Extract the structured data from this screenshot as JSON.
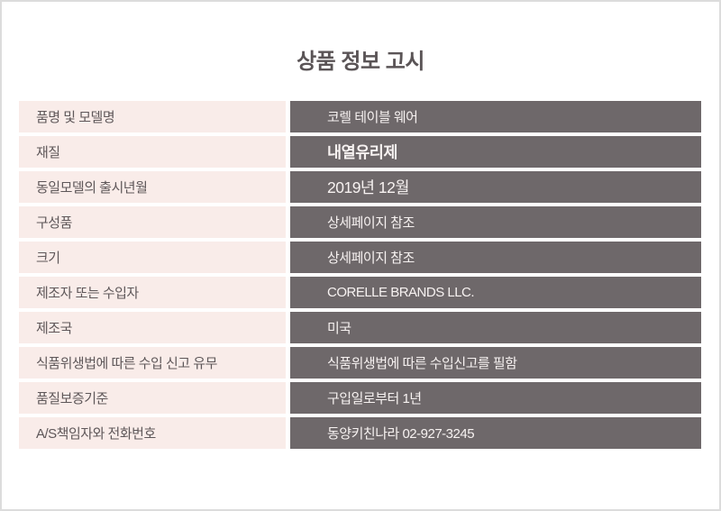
{
  "page": {
    "title": "상품 정보 고시"
  },
  "colors": {
    "label_bg": "#f9ece9",
    "value_bg": "#6e686a",
    "title_text": "#5a5456",
    "label_text": "#5e5759",
    "value_text": "#f7f2f1",
    "page_border": "#dcdcdc"
  },
  "table": {
    "rows": [
      {
        "label": "품명 및 모델명",
        "value": "코렐 테이블 웨어",
        "value_bold": false,
        "value_large": false
      },
      {
        "label": "재질",
        "value": "내열유리제",
        "value_bold": true,
        "value_large": true
      },
      {
        "label": "동일모델의 출시년월",
        "value": "2019년 12월",
        "value_bold": false,
        "value_large": true
      },
      {
        "label": "구성품",
        "value": "상세페이지 참조",
        "value_bold": false,
        "value_large": false
      },
      {
        "label": "크기",
        "value": "상세페이지 참조",
        "value_bold": false,
        "value_large": false
      },
      {
        "label": "제조자 또는 수입자",
        "value": "CORELLE BRANDS LLC.",
        "value_bold": false,
        "value_large": false
      },
      {
        "label": "제조국",
        "value": "미국",
        "value_bold": false,
        "value_large": false
      },
      {
        "label": "식품위생법에 따른 수입 신고 유무",
        "value": "식품위생법에 따른 수입신고를 필함",
        "value_bold": false,
        "value_large": false
      },
      {
        "label": "품질보증기준",
        "value": "구입일로부터 1년",
        "value_bold": false,
        "value_large": false
      },
      {
        "label": "A/S책임자와 전화번호",
        "value": "동양키친나라 02-927-3245",
        "value_bold": false,
        "value_large": false
      }
    ]
  }
}
